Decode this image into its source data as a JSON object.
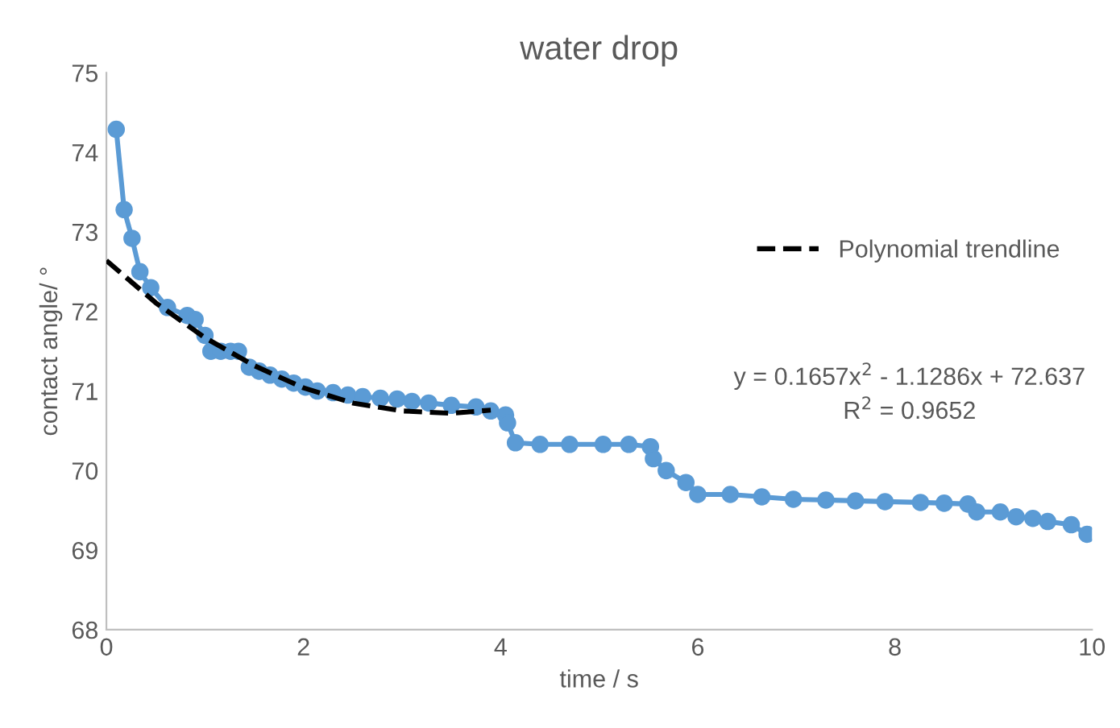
{
  "chart_data": {
    "type": "line",
    "title": "water drop",
    "xlabel": "time / s",
    "ylabel": "contact angle/ °",
    "xlim": [
      0,
      10
    ],
    "xticks": [
      0,
      2,
      4,
      6,
      8,
      10
    ],
    "ylim": [
      68,
      75
    ],
    "yticks": [
      68,
      69,
      70,
      71,
      72,
      73,
      74,
      75
    ],
    "grid": false,
    "legend": "right",
    "annotations": [
      "y = 0.1657x$^{2}$ - 1.1286x + 72.637",
      "R$^{2}$ = 0.9652"
    ],
    "series": [
      {
        "color": "#5b9bd5",
        "marker": "circle",
        "line_style": "solid",
        "x": [
          0.1,
          0.18,
          0.26,
          0.34,
          0.45,
          0.62,
          0.82,
          0.9,
          1.0,
          1.06,
          1.16,
          1.26,
          1.34,
          1.45,
          1.55,
          1.66,
          1.78,
          1.9,
          2.02,
          2.14,
          2.3,
          2.45,
          2.6,
          2.78,
          2.95,
          3.1,
          3.27,
          3.5,
          3.75,
          3.9,
          4.05,
          4.07,
          4.15,
          4.4,
          4.7,
          5.04,
          5.3,
          5.52,
          5.55,
          5.68,
          5.88,
          6.0,
          6.33,
          6.65,
          6.97,
          7.3,
          7.6,
          7.9,
          8.26,
          8.5,
          8.74,
          8.83,
          9.07,
          9.23,
          9.4,
          9.55,
          9.79,
          9.95
        ],
        "values": [
          74.29,
          73.28,
          72.92,
          72.5,
          72.3,
          72.05,
          71.95,
          71.9,
          71.7,
          71.5,
          71.5,
          71.5,
          71.5,
          71.3,
          71.25,
          71.2,
          71.15,
          71.1,
          71.05,
          71.0,
          70.98,
          70.95,
          70.93,
          70.91,
          70.9,
          70.87,
          70.85,
          70.82,
          70.8,
          70.75,
          70.7,
          70.6,
          70.35,
          70.33,
          70.33,
          70.33,
          70.33,
          70.3,
          70.15,
          70.0,
          69.85,
          69.7,
          69.7,
          69.67,
          69.64,
          69.63,
          69.62,
          69.61,
          69.6,
          69.59,
          69.58,
          69.48,
          69.48,
          69.42,
          69.4,
          69.36,
          69.32,
          69.2
        ]
      },
      {
        "name": "Polynomial trendline",
        "type": "line",
        "color": "#000000",
        "marker": "none",
        "line_style": "dashed",
        "x": [
          0,
          0.5,
          1,
          1.5,
          2,
          2.5,
          3,
          3.5,
          3.9
        ],
        "values": [
          72.64,
          72.11,
          71.67,
          71.32,
          71.04,
          70.85,
          70.75,
          70.72,
          70.76
        ]
      }
    ]
  }
}
